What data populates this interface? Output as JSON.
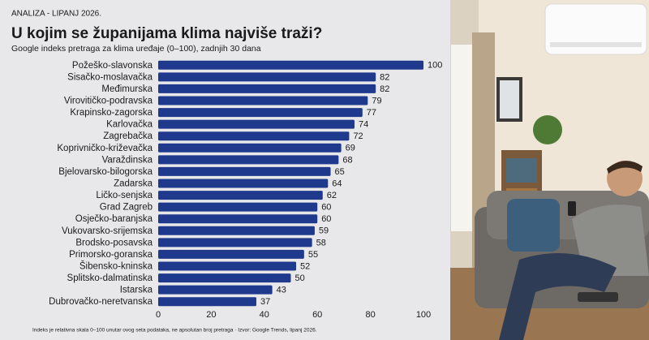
{
  "chart_data": {
    "type": "bar",
    "orientation": "horizontal",
    "kicker": "ANALIZA - LIPANJ 2026.",
    "title": "U kojim se županijama klima najviše traži?",
    "subtitle": "Google indeks pretraga za klima uređaje (0–100), zadnjih 30 dana",
    "note": "Indeks je relativna skala 0–100 unutar ovog seta podataka, ne apsolutan broj pretraga · Izvor: Google Trends, lipanj 2026.",
    "categories": [
      "Požeško-slavonska",
      "Sisačko-moslavačka",
      "Međimurska",
      "Virovitičko-podravska",
      "Krapinsko-zagorska",
      "Karlovačka",
      "Zagrebačka",
      "Koprivničko-križevačka",
      "Varaždinska",
      "Bjelovarsko-bilogorska",
      "Zadarska",
      "Ličko-senjska",
      "Grad Zagreb",
      "Osječko-baranjska",
      "Vukovarsko-srijemska",
      "Brodsko-posavska",
      "Primorsko-goranska",
      "Šibensko-kninska",
      "Splitsko-dalmatinska",
      "Istarska",
      "Dubrovačko-neretvanska"
    ],
    "values": [
      100,
      82,
      82,
      79,
      77,
      74,
      72,
      69,
      68,
      65,
      64,
      62,
      60,
      60,
      59,
      58,
      55,
      52,
      50,
      43,
      37
    ],
    "color": "#1f3a8c",
    "xlim": [
      0,
      100
    ],
    "xticks": [
      0,
      20,
      40,
      60,
      80,
      100
    ]
  }
}
